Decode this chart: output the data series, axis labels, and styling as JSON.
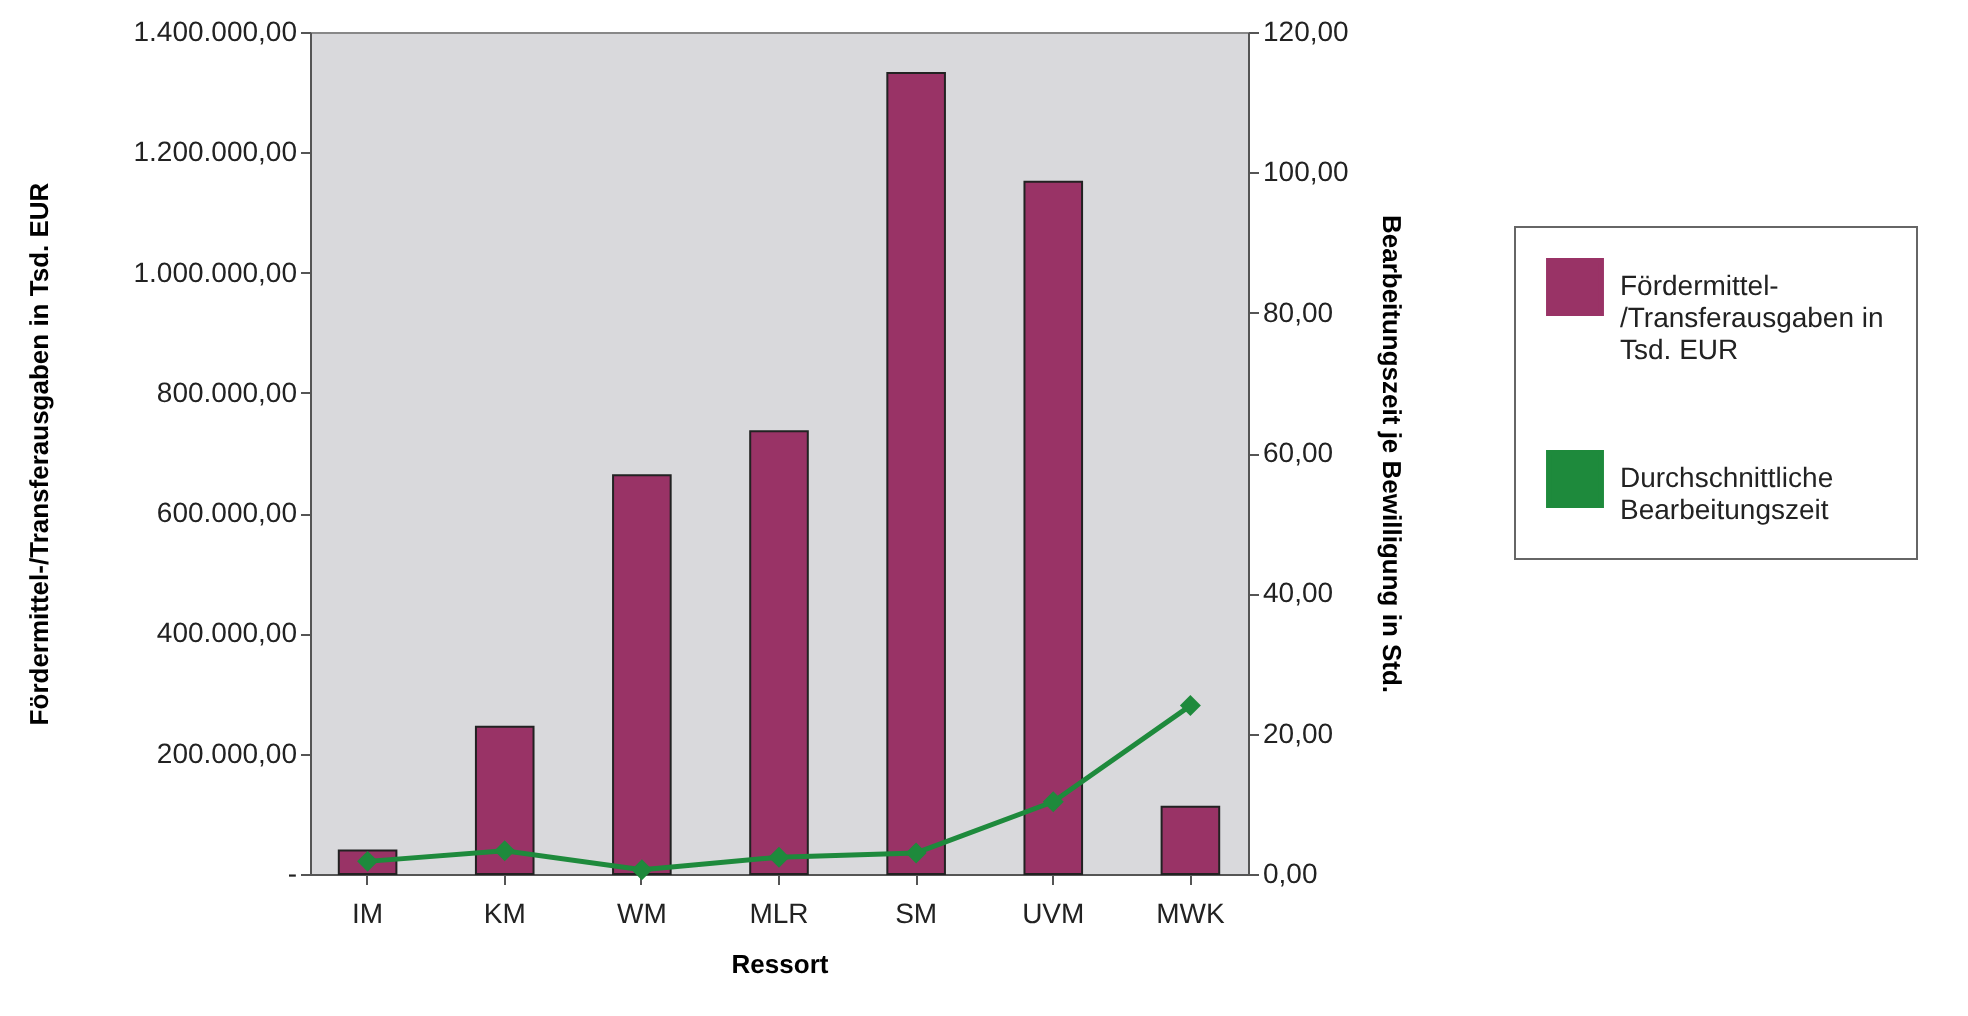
{
  "chart_data": {
    "type": "bar",
    "xlabel": "Ressort",
    "ylabel": "Fördermittel-/Transferausgaben in Tsd. EUR",
    "y2label": "Bearbeitungszeit je Bewilligung in Std.",
    "categories": [
      "IM",
      "KM",
      "WM",
      "MLR",
      "SM",
      "UVM",
      "MWK"
    ],
    "series": [
      {
        "name": "Fördermittel-/Transferausgaben in Tsd. EUR",
        "color": "#993366",
        "values": [
          39000,
          245000,
          663000,
          736000,
          1332000,
          1151000,
          112000
        ]
      },
      {
        "name": "Durchschnittliche Bearbeitungszeit",
        "type": "line",
        "axis": "y2",
        "color": "#1e8a3c",
        "marker": "diamond",
        "values": [
          1.8,
          3.3,
          0.6,
          2.4,
          3.0,
          10.3,
          24.0
        ]
      }
    ],
    "ylim": [
      0,
      1400000
    ],
    "yticks": [
      {
        "value": 0,
        "label": "-"
      },
      {
        "value": 200000,
        "label": "200.000,00"
      },
      {
        "value": 400000,
        "label": "400.000,00"
      },
      {
        "value": 600000,
        "label": "600.000,00"
      },
      {
        "value": 800000,
        "label": "800.000,00"
      },
      {
        "value": 1000000,
        "label": "1.000.000,00"
      },
      {
        "value": 1200000,
        "label": "1.200.000,00"
      },
      {
        "value": 1400000,
        "label": "1.400.000,00"
      }
    ],
    "y2lim": [
      0,
      120
    ],
    "y2ticks": [
      {
        "value": 0,
        "label": "0,00"
      },
      {
        "value": 20,
        "label": "20,00"
      },
      {
        "value": 40,
        "label": "40,00"
      },
      {
        "value": 60,
        "label": "60,00"
      },
      {
        "value": 80,
        "label": "80,00"
      },
      {
        "value": 100,
        "label": "100,00"
      },
      {
        "value": 120,
        "label": "120,00"
      }
    ],
    "legend": "right"
  }
}
